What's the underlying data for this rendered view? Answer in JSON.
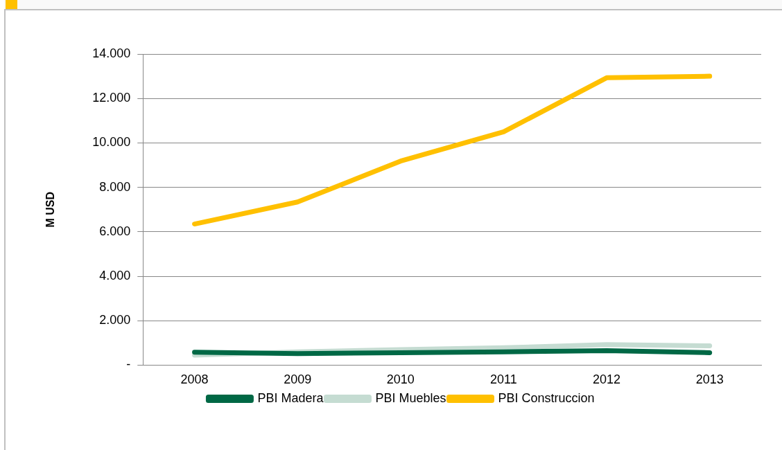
{
  "chart_data": {
    "type": "line",
    "ylabel": "M USD",
    "categories": [
      "2008",
      "2009",
      "2010",
      "2011",
      "2012",
      "2013"
    ],
    "series": [
      {
        "name": "PBI Madera",
        "color": "#006845",
        "values": [
          580,
          520,
          560,
          600,
          650,
          560
        ]
      },
      {
        "name": "PBI Muebles",
        "color": "#c5dcd2",
        "values": [
          450,
          600,
          700,
          780,
          920,
          870
        ]
      },
      {
        "name": "PBI Construccion",
        "color": "#ffc000",
        "values": [
          6350,
          7340,
          9180,
          10500,
          12930,
          13000
        ]
      }
    ],
    "ylim": [
      0,
      14000
    ],
    "yticks": [
      {
        "value": 0,
        "label": "-"
      },
      {
        "value": 2000,
        "label": "2.000"
      },
      {
        "value": 4000,
        "label": "4.000"
      },
      {
        "value": 6000,
        "label": "6.000"
      },
      {
        "value": 8000,
        "label": "8.000"
      },
      {
        "value": 10000,
        "label": "10.000"
      },
      {
        "value": 12000,
        "label": "12.000"
      },
      {
        "value": 14000,
        "label": "14.000"
      }
    ],
    "grid": "y",
    "legend": "bottom",
    "marker": "none",
    "line_style": "solid"
  }
}
